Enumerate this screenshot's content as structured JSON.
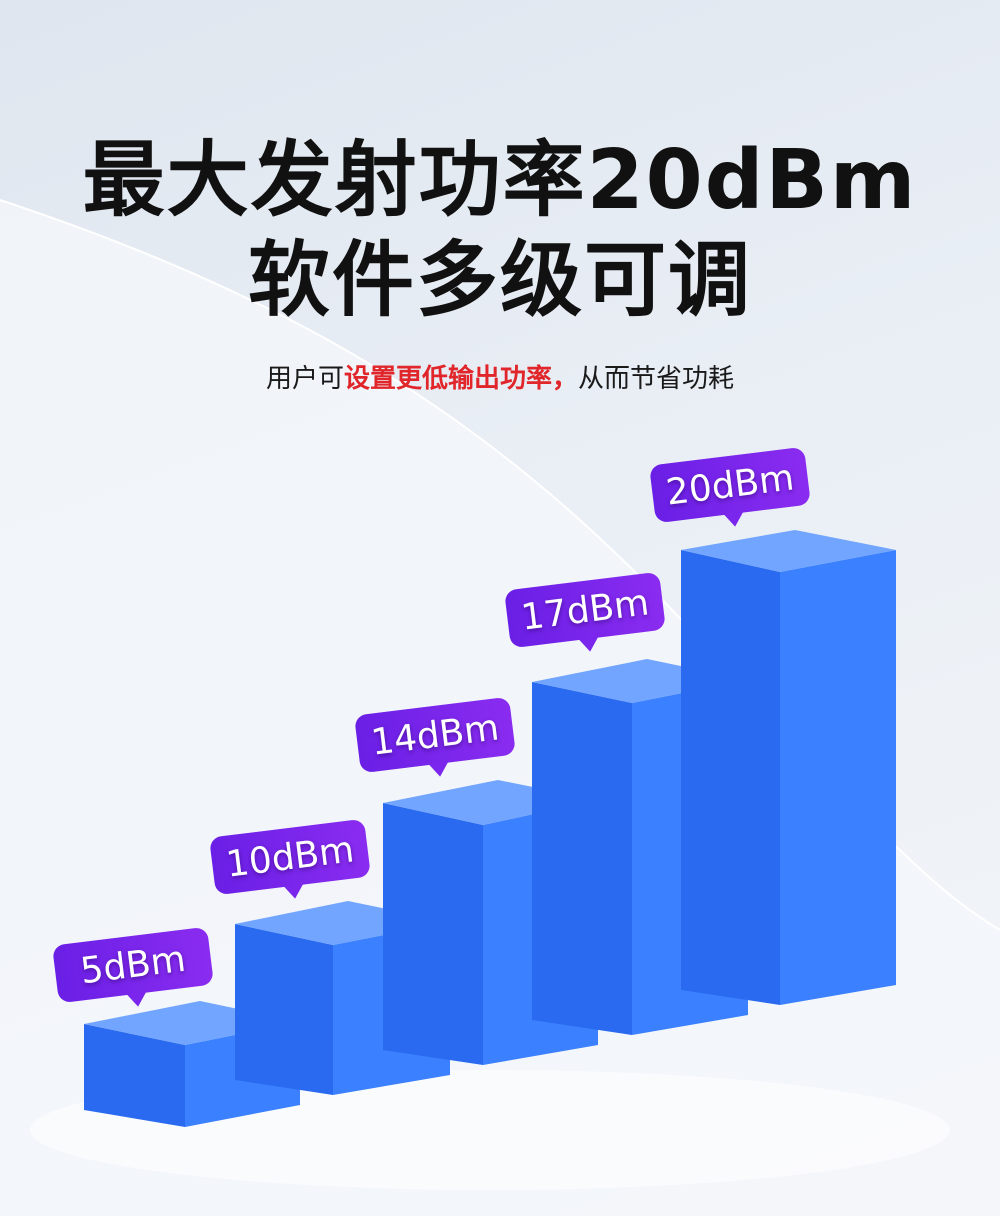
{
  "headline": {
    "line1": "最大发射功率20dBm",
    "line2": "软件多级可调"
  },
  "subtitle": {
    "part1": "用户可",
    "highlight": "设置更低输出功率，",
    "part2": "从而节省功耗"
  },
  "colors": {
    "highlight": "#e0262a",
    "bubble": "#7a26ec",
    "bar_top": "#72a5ff",
    "bar_left": "#2a6af0",
    "bar_right": "#3a80ff"
  },
  "levels": [
    {
      "label": "5dBm",
      "value": 5
    },
    {
      "label": "10dBm",
      "value": 10
    },
    {
      "label": "14dBm",
      "value": 14
    },
    {
      "label": "17dBm",
      "value": 17
    },
    {
      "label": "20dBm",
      "value": 20
    }
  ]
}
